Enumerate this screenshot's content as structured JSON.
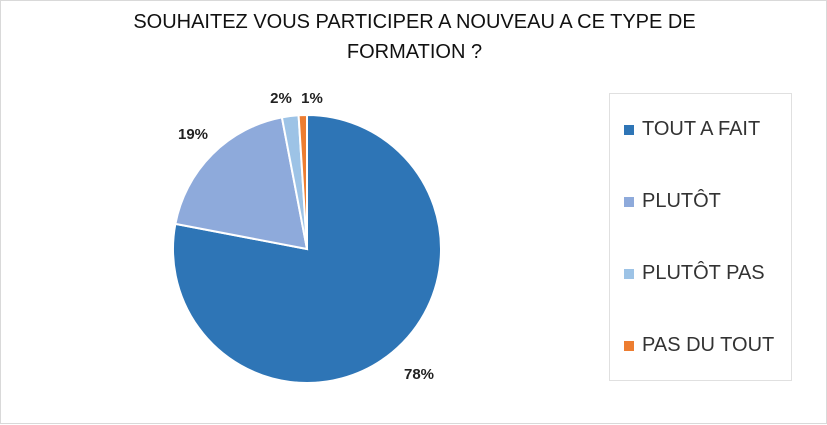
{
  "chart_data": {
    "type": "pie",
    "title": "SOUHAITEZ VOUS PARTICIPER A NOUVEAU A CE TYPE DE FORMATION ?",
    "title_lines": [
      "SOUHAITEZ VOUS PARTICIPER A NOUVEAU A CE TYPE DE",
      "FORMATION ?"
    ],
    "legend_position": "right",
    "slices": [
      {
        "label": "TOUT A FAIT",
        "value": 78,
        "display": "78%",
        "color": "#2e75b6"
      },
      {
        "label": "PLUTÔT",
        "value": 19,
        "display": "19%",
        "color": "#8eaadb"
      },
      {
        "label": "PLUTÔT PAS",
        "value": 2,
        "display": "2%",
        "color": "#9dc3e6"
      },
      {
        "label": "PAS DU TOUT",
        "value": 1,
        "display": "1%",
        "color": "#ed7d31"
      }
    ]
  }
}
